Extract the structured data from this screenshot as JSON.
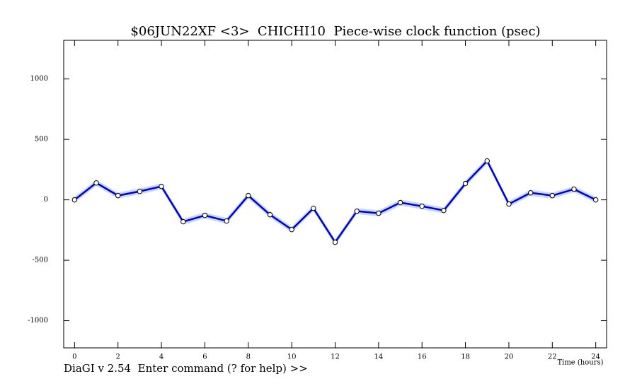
{
  "chart_data": {
    "type": "line",
    "title": "$06JUN22XF <3>  CHICHI10  Piece-wise clock function (psec)",
    "x_label": "Time (hours)",
    "x": [
      0,
      1,
      2,
      3,
      4,
      5,
      6,
      7,
      8,
      9,
      10,
      11,
      12,
      13,
      14,
      15,
      16,
      17,
      18,
      19,
      20,
      21,
      22,
      23,
      24
    ],
    "series": [
      {
        "color": "#0000cc",
        "band_color": "#c8d8f8",
        "values": [
          0,
          140,
          35,
          70,
          111,
          -181,
          -129,
          -175,
          35,
          -123,
          -246,
          -70,
          -351,
          -94,
          -111,
          -23,
          -53,
          -88,
          135,
          322,
          -35,
          58,
          35,
          88,
          0
        ],
        "errors": [
          25,
          25,
          25,
          25,
          25,
          25,
          25,
          25,
          25,
          25,
          25,
          25,
          25,
          25,
          25,
          25,
          25,
          25,
          25,
          25,
          25,
          25,
          25,
          25,
          25
        ]
      }
    ],
    "xlim": [
      -0.5,
      24.5
    ],
    "xticks": [
      0,
      2,
      4,
      6,
      8,
      10,
      12,
      14,
      16,
      18,
      20,
      22,
      24
    ],
    "ylim": [
      -1225,
      1320
    ],
    "yticks": [
      -1000,
      -500,
      0,
      500,
      1000
    ]
  },
  "status_line": "DiaGI v 2.54  Enter command (? for help) >>"
}
